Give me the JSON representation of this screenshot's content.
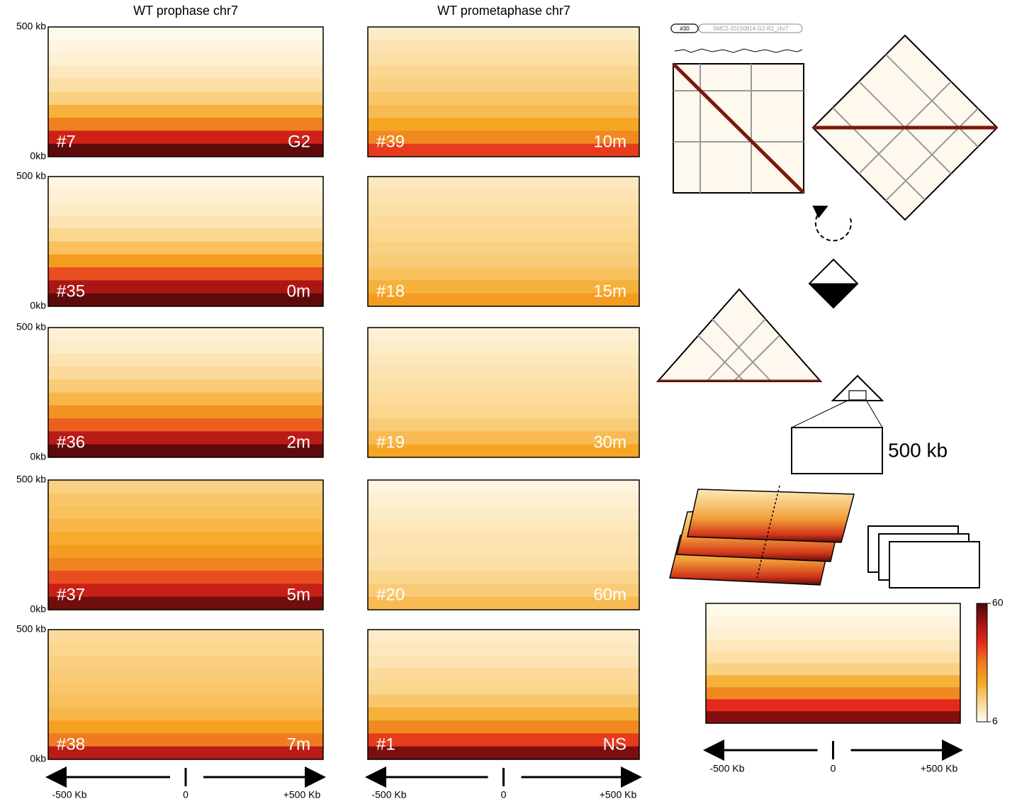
{
  "titles": [
    "WT prophase chr7",
    "WT prometaphase chr7"
  ],
  "y_top_label": "500 kb",
  "y_bottom_label": "0kb",
  "x_labels": [
    "-500 Kb",
    "0",
    "+500 Kb"
  ],
  "colorbar": {
    "range": [
      6,
      60
    ],
    "ticks": [
      6,
      60
    ],
    "colormap": [
      "#fffdf6",
      "#fbd68e",
      "#f5a623",
      "#ef7a20",
      "#e42a1c",
      "#a31313",
      "#4a0808"
    ]
  },
  "chart_data": [
    {
      "type": "heatmap",
      "label": "#7",
      "time": "G2",
      "values": [
        7,
        8,
        9,
        11,
        13,
        16,
        22,
        32,
        45,
        58
      ]
    },
    {
      "type": "heatmap",
      "label": "#35",
      "time": "0m",
      "values": [
        8,
        9,
        10,
        12,
        15,
        19,
        26,
        38,
        50,
        58
      ]
    },
    {
      "type": "heatmap",
      "label": "#36",
      "time": "2m",
      "values": [
        9,
        10,
        12,
        14,
        17,
        21,
        28,
        36,
        48,
        58
      ]
    },
    {
      "type": "heatmap",
      "label": "#37",
      "time": "5m",
      "values": [
        16,
        18,
        19,
        21,
        23,
        26,
        31,
        38,
        46,
        56
      ]
    },
    {
      "type": "heatmap",
      "label": "#38",
      "time": "7m",
      "values": [
        14,
        15,
        16,
        17,
        18,
        19,
        21,
        25,
        33,
        48
      ]
    },
    {
      "type": "heatmap",
      "label": "#39",
      "time": "10m",
      "values": [
        10,
        12,
        13,
        15,
        16,
        18,
        20,
        24,
        30,
        40
      ]
    },
    {
      "type": "heatmap",
      "label": "#18",
      "time": "15m",
      "values": [
        11,
        12,
        13,
        14,
        15,
        16,
        17,
        19,
        22,
        26
      ]
    },
    {
      "type": "heatmap",
      "label": "#19",
      "time": "30m",
      "values": [
        9,
        10,
        11,
        12,
        13,
        14,
        15,
        17,
        20,
        24
      ]
    },
    {
      "type": "heatmap",
      "label": "#20",
      "time": "60m",
      "values": [
        8,
        9,
        10,
        11,
        12,
        12,
        13,
        15,
        17,
        20
      ]
    },
    {
      "type": "heatmap",
      "label": "#1",
      "time": "NS",
      "values": [
        10,
        11,
        12,
        14,
        15,
        18,
        22,
        30,
        40,
        55
      ]
    },
    {
      "type": "heatmap",
      "values": [
        7,
        8,
        9,
        11,
        13,
        16,
        22,
        30,
        42,
        54
      ]
    }
  ],
  "schematic": {
    "track_id": "#30",
    "track_name": "SMC2-20150814-G2-R2_chr7",
    "scale_label": "500 kb"
  }
}
